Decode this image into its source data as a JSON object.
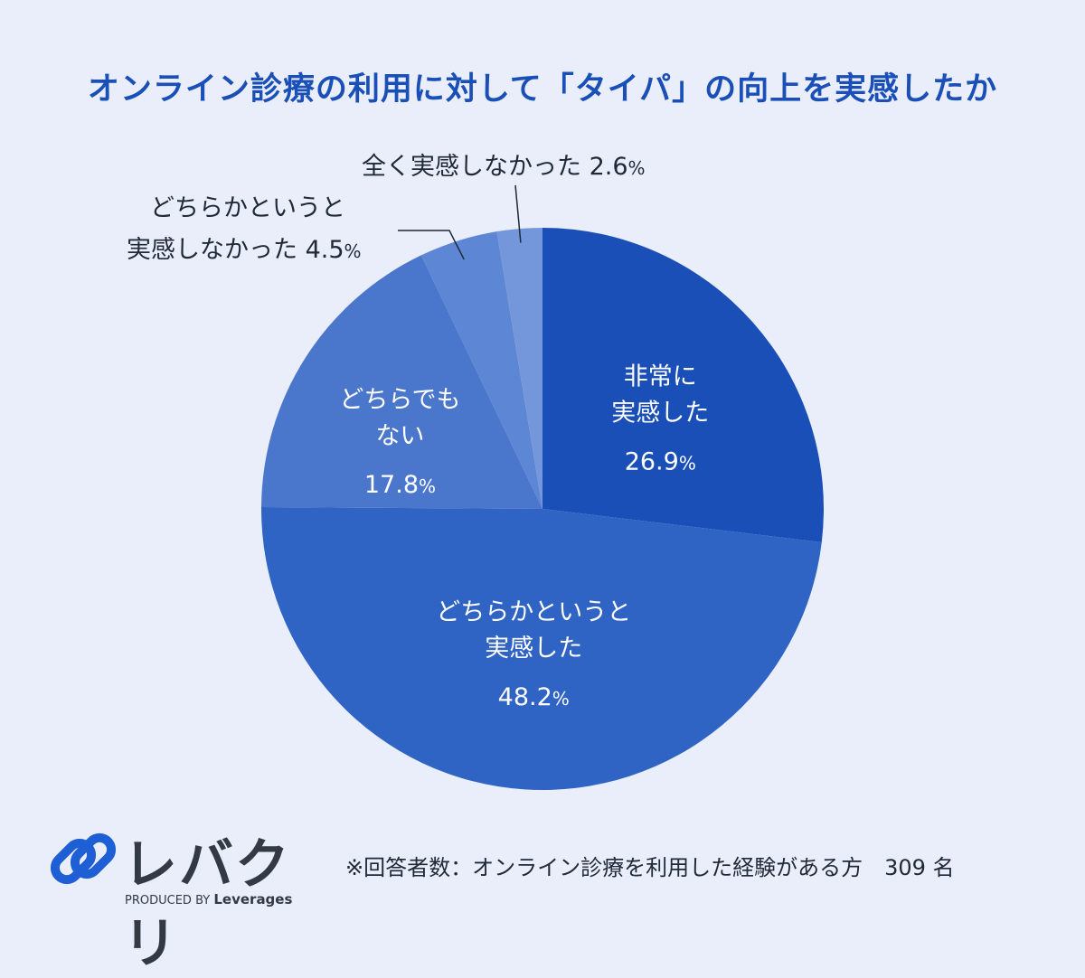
{
  "title": "オンライン診療の利用に対して「タイパ」の向上を実感したか",
  "chart_data": {
    "type": "pie",
    "title": "オンライン診療の利用に対して「タイパ」の向上を実感したか",
    "unit": "%",
    "slices": [
      {
        "label": "非常に実感した",
        "lines": [
          "非常に",
          "実感した"
        ],
        "value": 26.9,
        "value_label": "26.9",
        "color": "#1a4fb8"
      },
      {
        "label": "どちらかというと実感した",
        "lines": [
          "どちらかというと",
          "実感した"
        ],
        "value": 48.2,
        "value_label": "48.2",
        "color": "#2f63c4"
      },
      {
        "label": "どちらでもない",
        "lines": [
          "どちらでも",
          "ない"
        ],
        "value": 17.8,
        "value_label": "17.8",
        "color": "#4a76cc"
      },
      {
        "label": "どちらかというと実感しなかった",
        "lines": [
          "どちらかというと",
          "実感しなかった"
        ],
        "value": 4.5,
        "value_label": "4.5",
        "color": "#5d86d4"
      },
      {
        "label": "全く実感しなかった",
        "lines": [
          "全く実感しなかった"
        ],
        "value": 2.6,
        "value_label": "2.6",
        "color": "#7496db"
      }
    ]
  },
  "external_labels": {
    "neither_l1": "どちらかというと",
    "neither_l2": "実感しなかった",
    "neither_pct": "4.5",
    "none_l1": "全く実感しなかった",
    "none_pct": "2.6",
    "unit": "%"
  },
  "logo": {
    "text": "レバクリ",
    "produced_by": "PRODUCED BY",
    "brand": "Leverages"
  },
  "footnote": "※回答者数：オンライン診療を利用した経験がある方　309 名"
}
